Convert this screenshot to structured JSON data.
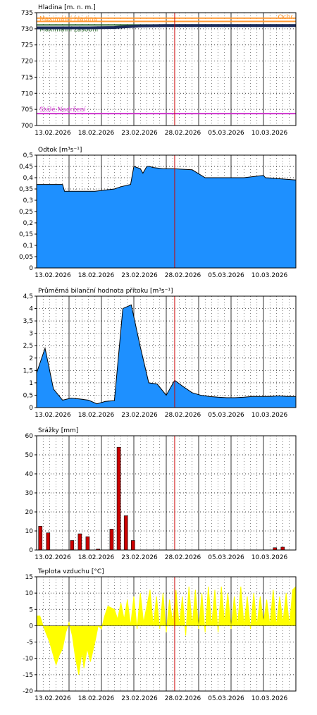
{
  "colors": {
    "fill_blue": "#1e90ff",
    "edge_black": "#000000",
    "rain_red": "#cc0000",
    "temp_yellow": "#ffff00",
    "today_line": "#cc0000",
    "stage_orange": "#ff9933",
    "stage_darkgreen": "#2e6b2e",
    "stage_purple": "#cc33cc",
    "stage_navy": "#1a2a5a"
  },
  "dates": [
    "13.02.2026",
    "18.02.2026",
    "23.02.2026",
    "28.02.2026",
    "05.03.2026",
    "10.03.2026"
  ],
  "chart_data": [
    {
      "id": "hladina",
      "type": "line",
      "title": "Hladina [m. n. m.]",
      "ylim": [
        700,
        735
      ],
      "yticks": [
        700,
        705,
        710,
        715,
        720,
        725,
        730,
        735
      ],
      "ytick_labels": [
        "700",
        "705",
        "710",
        "715",
        "720",
        "725",
        "730",
        "735"
      ],
      "grid": true,
      "reference_lines": [
        {
          "label": "Ochr.",
          "value": 733.3,
          "color": "#ff9933"
        },
        {
          "label": "Maximální hladina",
          "value": 732.3,
          "color": "#ff9933"
        },
        {
          "label": "Maximální zásobní",
          "value": 731.2,
          "color": "#2e6b2e"
        },
        {
          "label": "Stálé Nadržení",
          "value": 703.7,
          "color": "#cc33cc"
        }
      ],
      "series": [
        {
          "x": [
            0,
            4,
            8,
            12,
            16,
            20,
            24,
            28,
            32,
            36,
            40
          ],
          "y": [
            730.3,
            730.3,
            730.3,
            730.4,
            730.9,
            731.0,
            731.0,
            731.0,
            731.0,
            731.0,
            731.0
          ]
        }
      ]
    },
    {
      "id": "odtok",
      "type": "area",
      "title": "Odtok [m³s⁻¹]",
      "ylim": [
        0,
        0.5
      ],
      "yticks": [
        0,
        0.05,
        0.1,
        0.15,
        0.2,
        0.25,
        0.3,
        0.35,
        0.4,
        0.45,
        0.5
      ],
      "ytick_labels": [
        "0",
        "0,05",
        "0,1",
        "0,15",
        "0,2",
        "0,25",
        "0,3",
        "0,35",
        "0,4",
        "0,45",
        "0,5"
      ],
      "grid": true,
      "series": [
        {
          "x": [
            0,
            4,
            4.3,
            9,
            12,
            13,
            14.5,
            15,
            16,
            16.4,
            17,
            17.4,
            18,
            19.5,
            21,
            24,
            26,
            28,
            30,
            32,
            35,
            35.3,
            40
          ],
          "y": [
            0.37,
            0.37,
            0.34,
            0.34,
            0.35,
            0.36,
            0.37,
            0.45,
            0.44,
            0.42,
            0.45,
            0.45,
            0.445,
            0.44,
            0.44,
            0.435,
            0.4,
            0.4,
            0.4,
            0.4,
            0.41,
            0.4,
            0.39
          ]
        }
      ]
    },
    {
      "id": "pritok",
      "type": "area",
      "title": "Průměrná bilanční hodnota přítoku [m³s⁻¹]",
      "ylim": [
        0,
        4.5
      ],
      "yticks": [
        0,
        0.5,
        1,
        1.5,
        2,
        2.5,
        3,
        3.5,
        4,
        4.5
      ],
      "ytick_labels": [
        "0",
        "0,5",
        "1",
        "1,5",
        "2",
        "2,5",
        "3",
        "3,5",
        "4",
        "4,5"
      ],
      "grid": true,
      "series": [
        {
          "x": [
            0,
            1.3,
            2.6,
            4,
            5.3,
            6.6,
            8,
            9.3,
            10.6,
            12,
            13.3,
            14.6,
            16,
            17.3,
            18.6,
            20,
            21.3,
            22.6,
            24,
            25.3,
            26.6,
            28,
            29.3,
            30.6,
            32,
            33.3,
            34.6,
            36,
            37.3,
            38.6,
            40
          ],
          "y": [
            1.4,
            2.4,
            0.75,
            0.3,
            0.38,
            0.35,
            0.3,
            0.15,
            0.25,
            0.28,
            4.0,
            4.15,
            2.45,
            1.0,
            0.95,
            0.5,
            1.1,
            0.85,
            0.6,
            0.5,
            0.45,
            0.42,
            0.4,
            0.4,
            0.42,
            0.45,
            0.45,
            0.45,
            0.47,
            0.45,
            0.45
          ]
        }
      ]
    },
    {
      "id": "srazky",
      "type": "bar",
      "title": "Srážky [mm]",
      "ylim": [
        0,
        60
      ],
      "yticks": [
        0,
        10,
        20,
        30,
        40,
        50,
        60
      ],
      "ytick_labels": [
        "0",
        "10",
        "20",
        "30",
        "40",
        "50",
        "60"
      ],
      "grid": true,
      "series": [
        {
          "x": [
            0.3,
            1.5,
            5.2,
            6.4,
            7.6,
            9.2,
            11.3,
            12.4,
            13.5,
            14.6,
            36.5,
            37.7
          ],
          "y": [
            12.5,
            9,
            5,
            8.5,
            7,
            0.5,
            11,
            54,
            18,
            5,
            1.2,
            1.5
          ]
        }
      ]
    },
    {
      "id": "teplota",
      "type": "area",
      "title": "Teplota vzduchu [°C]",
      "ylim": [
        -20,
        15
      ],
      "yticks": [
        -20,
        -15,
        -10,
        -5,
        0,
        5,
        10,
        15
      ],
      "ytick_labels": [
        "-20",
        "-15",
        "-10",
        "-5",
        "0",
        "5",
        "10",
        "15"
      ],
      "grid": true,
      "series": [
        {
          "x": [
            0,
            0.5,
            1,
            2,
            3,
            3.5,
            4,
            4.5,
            5,
            5.5,
            6,
            6.5,
            7,
            7.3,
            7.8,
            8.3,
            9,
            9.5,
            10,
            10.5,
            11,
            12,
            12.5,
            13,
            13.5,
            14,
            14.5,
            15,
            15.5,
            16,
            16.5,
            17,
            17.5,
            18,
            18.5,
            19,
            19.5,
            20,
            20.5,
            21,
            21.5,
            22,
            22.5,
            23,
            23.5,
            24,
            24.5,
            25,
            25.5,
            26,
            26.5,
            27,
            27.5,
            28,
            28.5,
            29,
            29.5,
            30,
            30.5,
            31,
            31.5,
            32,
            32.5,
            33,
            33.5,
            34,
            34.5,
            35,
            35.5,
            36,
            36.5,
            37,
            37.5,
            38,
            38.5,
            39,
            39.5,
            40
          ],
          "y": [
            3,
            3,
            0,
            -5,
            -12,
            -9,
            -7,
            -2,
            1,
            -3,
            -10,
            -15,
            -8,
            -13,
            -7,
            -11,
            -5,
            0,
            -1,
            3,
            6,
            5,
            2,
            7,
            2,
            8,
            0,
            9,
            -1,
            10,
            1,
            6,
            11,
            0,
            9,
            -1,
            10,
            -2,
            8,
            1,
            11,
            0,
            9,
            -3,
            12,
            0,
            11,
            -1,
            10,
            -2,
            12,
            0,
            11,
            -2,
            12,
            1,
            10,
            -1,
            9,
            0,
            12,
            0,
            9,
            -1,
            10,
            0,
            9,
            1,
            8,
            0,
            11,
            0,
            9,
            1,
            10,
            0,
            11,
            12
          ]
        }
      ]
    }
  ]
}
